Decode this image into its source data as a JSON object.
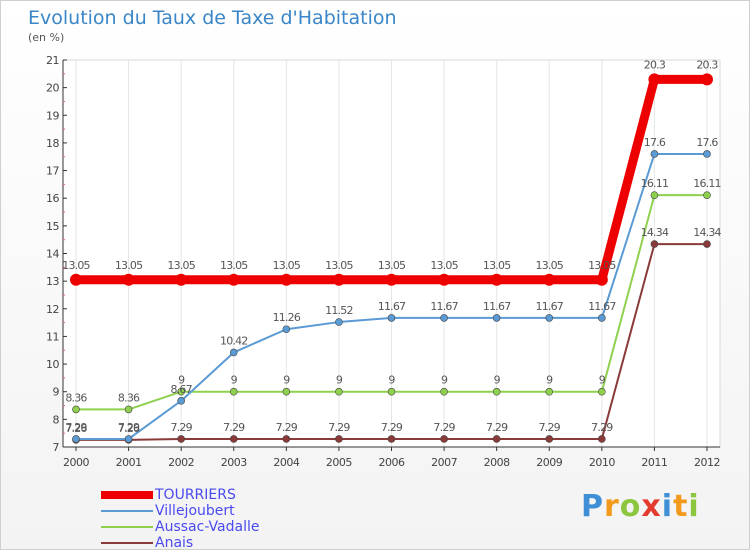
{
  "header": {
    "title": "Evolution du Taux de Taxe d'Habitation",
    "subtitle": "(en %)"
  },
  "logo": {
    "text": "Proxiti",
    "letters": [
      "P",
      "r",
      "o",
      "x",
      "i",
      "t",
      "i"
    ],
    "colors": [
      "#3f8fd6",
      "#f39a1d",
      "#8cc63f",
      "#e33b2e",
      "#3f8fd6",
      "#f39a1d",
      "#8cc63f"
    ]
  },
  "chart_data": {
    "type": "line",
    "title": "Evolution du Taux de Taxe d'Habitation",
    "subtitle": "(en %)",
    "xlabel": "",
    "ylabel": "",
    "categories": [
      "2000",
      "2001",
      "2002",
      "2003",
      "2004",
      "2005",
      "2006",
      "2007",
      "2008",
      "2009",
      "2010",
      "2011",
      "2012"
    ],
    "ylim": [
      7,
      21
    ],
    "yticks": [
      7,
      8,
      9,
      10,
      11,
      12,
      13,
      14,
      15,
      16,
      17,
      18,
      19,
      20,
      21
    ],
    "grid": "vertical",
    "legend_position": "bottom-left",
    "series": [
      {
        "name": "TOURRIERS",
        "color": "#ee0000",
        "values": [
          13.05,
          13.05,
          13.05,
          13.05,
          13.05,
          13.05,
          13.05,
          13.05,
          13.05,
          13.05,
          13.05,
          20.3,
          20.3
        ],
        "labels": [
          "13.05",
          "13.05",
          "13.05",
          "13.05",
          "13.05",
          "13.05",
          "13.05",
          "13.05",
          "13.05",
          "13.05",
          "13.05",
          "20.3",
          "20.3"
        ]
      },
      {
        "name": "Villejoubert",
        "color": "#5a9ad5",
        "values": [
          7.29,
          7.29,
          8.67,
          10.42,
          11.26,
          11.52,
          11.67,
          11.67,
          11.67,
          11.67,
          11.67,
          17.6,
          17.6
        ],
        "labels": [
          "7.29",
          "7.29",
          "8.67",
          "10.42",
          "11.26",
          "11.52",
          "11.67",
          "11.67",
          "11.67",
          "11.67",
          "11.67",
          "17.6",
          "17.6"
        ]
      },
      {
        "name": "Aussac-Vadalle",
        "color": "#8fd14f",
        "values": [
          8.36,
          8.36,
          9,
          9,
          9,
          9,
          9,
          9,
          9,
          9,
          9,
          16.11,
          16.11
        ],
        "labels": [
          "8.36",
          "8.36",
          "9",
          "9",
          "9",
          "9",
          "9",
          "9",
          "9",
          "9",
          "9",
          "16.11",
          "16.11"
        ]
      },
      {
        "name": "Anais",
        "color": "#8b3a3a",
        "values": [
          7.26,
          7.26,
          7.29,
          7.29,
          7.29,
          7.29,
          7.29,
          7.29,
          7.29,
          7.29,
          7.29,
          14.34,
          14.34
        ],
        "labels": [
          "7.26",
          "7.26",
          "7.29",
          "7.29",
          "7.29",
          "7.29",
          "7.29",
          "7.29",
          "7.29",
          "7.29",
          "7.29",
          "14.34",
          "14.34"
        ]
      }
    ]
  }
}
